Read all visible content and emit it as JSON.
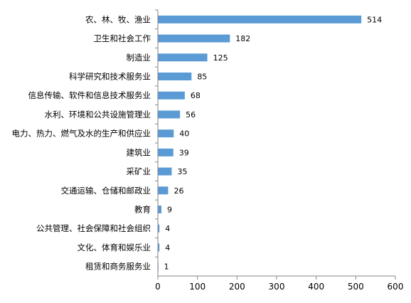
{
  "chart_data": {
    "type": "bar",
    "orientation": "horizontal",
    "categories": [
      "农、林、牧、渔业",
      "卫生和社会工作",
      "制造业",
      "科学研究和技术服务业",
      "信息传输、软件和信息技术服务业",
      "水利、环境和公共设施管理业",
      "电力、热力、燃气及水的生产和供应业",
      "建筑业",
      "采矿业",
      "交通运输、仓储和邮政业",
      "教育",
      "公共管理、社会保障和社会组织",
      "文化、体育和娱乐业",
      "租赁和商务服务业"
    ],
    "values": [
      514,
      182,
      125,
      85,
      68,
      56,
      40,
      39,
      35,
      26,
      9,
      4,
      4,
      1
    ],
    "title": "",
    "xlabel": "",
    "ylabel": "",
    "xlim": [
      0,
      600
    ],
    "xticks": [
      0,
      100,
      200,
      300,
      400,
      500,
      600
    ],
    "grid": false,
    "legend": "none",
    "data_labels": true,
    "colors": {
      "bar": "#5B9BD5",
      "axis": "#868686"
    }
  }
}
